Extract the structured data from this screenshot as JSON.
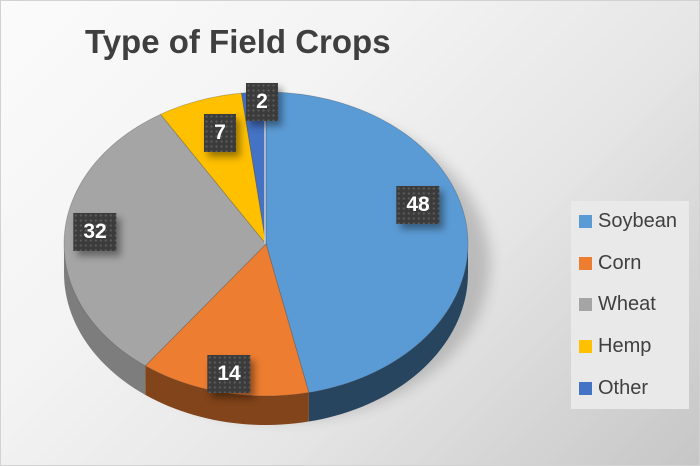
{
  "chart_data": {
    "type": "pie",
    "effect": "3d",
    "title": "Type of Field Crops",
    "labels": [
      "Soybean",
      "Corn",
      "Wheat",
      "Hemp",
      "Other"
    ],
    "values": [
      48,
      14,
      32,
      7,
      2
    ],
    "colors": [
      "#5B9BD5",
      "#ED7D31",
      "#A5A5A5",
      "#FFC000",
      "#4472C4"
    ],
    "start_angle_deg": 0,
    "direction": "clockwise",
    "data_labels_shown": true,
    "legend_position": "right",
    "label_box_color": "#3b3b3b",
    "label_text_color": "#ffffff",
    "title_color": "#3f3f3f"
  }
}
